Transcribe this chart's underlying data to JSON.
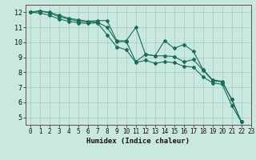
{
  "title": "",
  "xlabel": "Humidex (Indice chaleur)",
  "ylabel": "",
  "xlim": [
    -0.5,
    23
  ],
  "ylim": [
    4.5,
    12.5
  ],
  "xticks": [
    0,
    1,
    2,
    3,
    4,
    5,
    6,
    7,
    8,
    9,
    10,
    11,
    12,
    13,
    14,
    15,
    16,
    17,
    18,
    19,
    20,
    21,
    22,
    23
  ],
  "yticks": [
    5,
    6,
    7,
    8,
    9,
    10,
    11,
    12
  ],
  "background_color": "#c8e8e0",
  "grid_color": "#a8c8c0",
  "line_color": "#1a6b5a",
  "series": [
    [
      12.0,
      12.1,
      12.0,
      11.8,
      11.6,
      11.5,
      11.4,
      11.45,
      11.45,
      10.1,
      10.1,
      11.0,
      9.2,
      9.1,
      10.1,
      9.6,
      9.85,
      9.4,
      8.2,
      7.5,
      7.4,
      6.2,
      4.7
    ],
    [
      12.0,
      12.1,
      11.95,
      11.7,
      11.55,
      11.4,
      11.35,
      11.35,
      11.0,
      10.05,
      10.05,
      8.7,
      9.2,
      9.1,
      9.1,
      9.05,
      8.7,
      8.85,
      8.15,
      7.45,
      7.35,
      6.2,
      4.7
    ],
    [
      12.0,
      11.95,
      11.8,
      11.55,
      11.4,
      11.3,
      11.25,
      11.3,
      10.5,
      9.7,
      9.5,
      8.65,
      8.8,
      8.6,
      8.7,
      8.65,
      8.4,
      8.35,
      7.7,
      7.3,
      7.2,
      5.8,
      4.7
    ]
  ],
  "xlabel_fontsize": 6.5,
  "tick_fontsize": 5.5
}
